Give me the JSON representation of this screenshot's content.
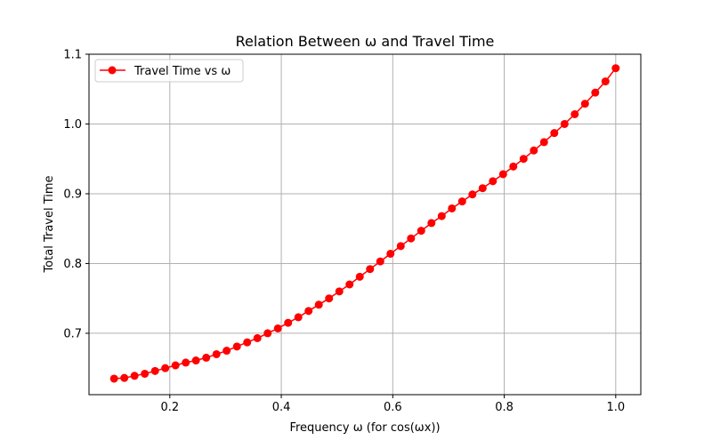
{
  "chart_data": {
    "type": "line",
    "title": "Relation Between ω and Travel Time",
    "xlabel": "Frequency ω (for cos(ωx))",
    "ylabel": "Total Travel Time",
    "xlim": [
      0.055,
      1.045
    ],
    "ylim": [
      0.612,
      1.1
    ],
    "xticks": [
      0.2,
      0.4,
      0.6,
      0.8,
      1.0
    ],
    "xtick_labels": [
      "0.2",
      "0.4",
      "0.6",
      "0.8",
      "1.0"
    ],
    "yticks": [
      0.7,
      0.8,
      0.9,
      1.0,
      1.1
    ],
    "ytick_labels": [
      "0.7",
      "0.8",
      "0.9",
      "1.0",
      "1.1"
    ],
    "grid": true,
    "legend_position": "upper left",
    "series": [
      {
        "name": "Travel Time vs ω",
        "color": "#ff0000",
        "marker": "circle",
        "x": [
          0.1,
          0.1184,
          0.1367,
          0.1551,
          0.1735,
          0.1918,
          0.2102,
          0.2286,
          0.2469,
          0.2653,
          0.2837,
          0.302,
          0.3204,
          0.3388,
          0.3571,
          0.3755,
          0.3939,
          0.4122,
          0.4306,
          0.449,
          0.4673,
          0.4857,
          0.5041,
          0.5224,
          0.5408,
          0.5592,
          0.5776,
          0.5959,
          0.6143,
          0.6327,
          0.651,
          0.6694,
          0.6878,
          0.7061,
          0.7245,
          0.7429,
          0.7612,
          0.7796,
          0.798,
          0.8163,
          0.8347,
          0.8531,
          0.8714,
          0.8898,
          0.9082,
          0.9265,
          0.9449,
          0.9633,
          0.9816,
          1.0
        ],
        "values": [
          0.635,
          0.636,
          0.639,
          0.642,
          0.646,
          0.65,
          0.654,
          0.658,
          0.661,
          0.665,
          0.67,
          0.675,
          0.681,
          0.687,
          0.693,
          0.7,
          0.707,
          0.715,
          0.723,
          0.732,
          0.741,
          0.75,
          0.76,
          0.77,
          0.781,
          0.792,
          0.803,
          0.814,
          0.825,
          0.836,
          0.847,
          0.858,
          0.868,
          0.879,
          0.889,
          0.899,
          0.908,
          0.918,
          0.928,
          0.939,
          0.95,
          0.962,
          0.974,
          0.987,
          1.0,
          1.014,
          1.029,
          1.045,
          1.061,
          1.08
        ]
      }
    ]
  }
}
